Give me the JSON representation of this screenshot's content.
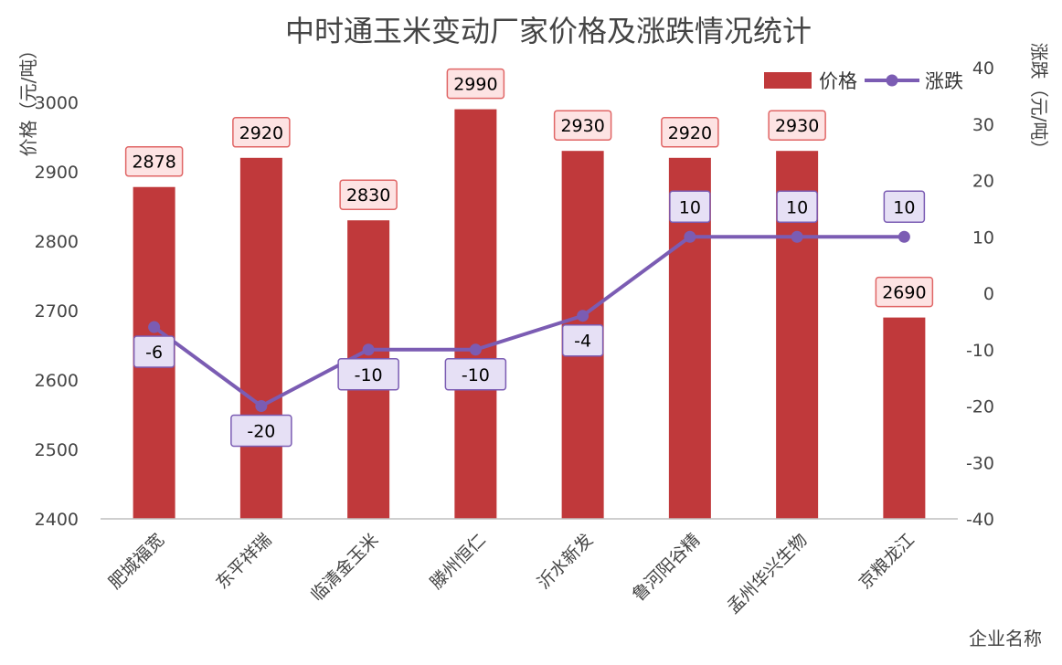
{
  "chart_data": {
    "type": "bar",
    "title": "中时通玉米变动厂家价格及涨跌情况统计",
    "xlabel": "企业名称",
    "ylabel": "价格（元/吨）",
    "y2label": "涨跌（元/吨）",
    "categories": [
      "肥城福宽",
      "东平祥瑞",
      "临清金玉米",
      "滕州恒仁",
      "沂水新发",
      "鲁河阳谷精",
      "孟州华兴生物",
      "京粮龙江"
    ],
    "series": [
      {
        "name": "价格",
        "type": "bar",
        "axis": "left",
        "values": [
          2878,
          2920,
          2830,
          2990,
          2930,
          2920,
          2930,
          2690
        ]
      },
      {
        "name": "涨跌",
        "type": "line",
        "axis": "right",
        "values": [
          -6,
          -20,
          -10,
          -10,
          -4,
          10,
          10,
          10
        ]
      }
    ],
    "ylim": [
      2400,
      3000
    ],
    "y2lim": [
      -40,
      40
    ],
    "yticks": [
      "2400",
      "2500",
      "2600",
      "2700",
      "2800",
      "2900",
      "3000"
    ],
    "y2ticks": [
      "40",
      "30",
      "20",
      "10",
      "0",
      "-10",
      "-20",
      "-30",
      "-40"
    ],
    "legend_position": "top-right",
    "colors": {
      "bar": "#c0393b",
      "line": "#7b5cb3",
      "bar_label_fill": "#fde3e3",
      "bar_label_stroke": "#e06666",
      "line_label_fill": "#e6e0f5",
      "line_label_stroke": "#7b5cb3"
    }
  }
}
